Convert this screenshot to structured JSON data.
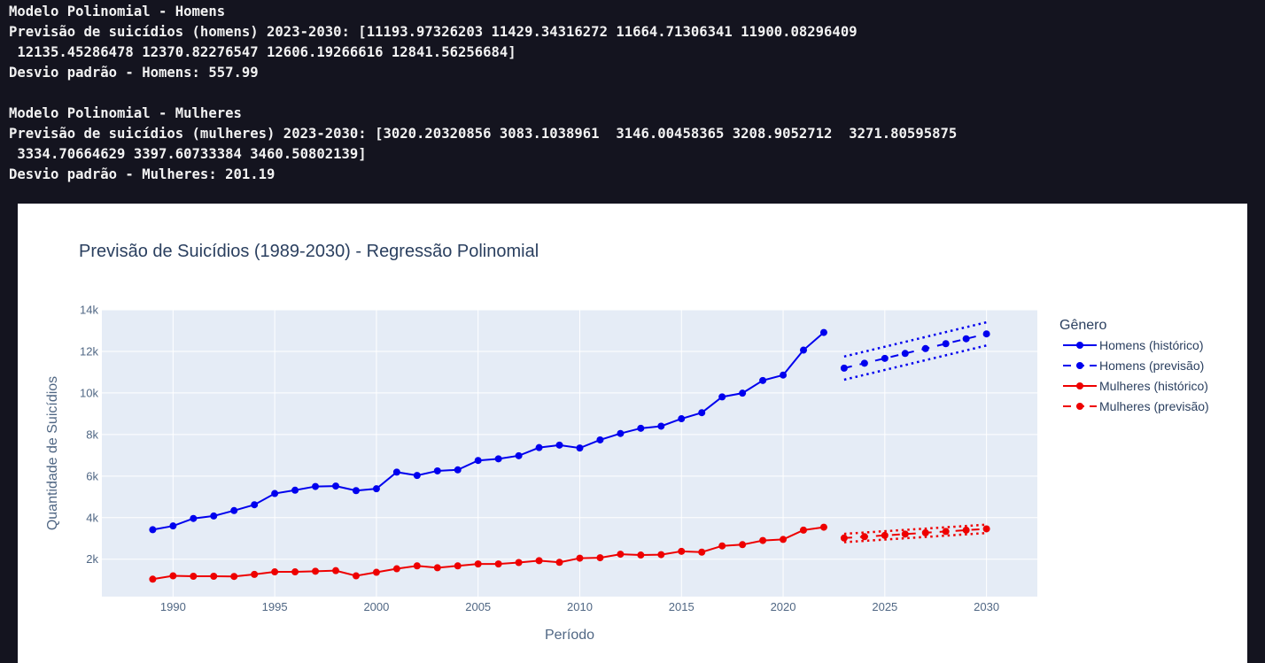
{
  "console": {
    "lines": [
      "Modelo Polinomial - Homens",
      "Previsão de suicídios (homens) 2023-2030: [11193.97326203 11429.34316272 11664.71306341 11900.08296409",
      " 12135.45286478 12370.82276547 12606.19266616 12841.56256684]",
      "Desvio padrão - Homens: 557.99",
      "",
      "Modelo Polinomial - Mulheres",
      "Previsão de suicídios (mulheres) 2023-2030: [3020.20320856 3083.1038961  3146.00458365 3208.9052712  3271.80595875",
      " 3334.70664629 3397.60733384 3460.50802139]",
      "Desvio padrão - Mulheres: 201.19"
    ]
  },
  "chart_data": {
    "type": "line",
    "title": "Previsão de Suicídios (1989-2030) - Regressão Polinomial",
    "xlabel": "Período",
    "ylabel": "Quantidade de Suicídios",
    "xlim": [
      1986.5,
      2032.5
    ],
    "ylim": [
      200,
      14000
    ],
    "x_ticks": [
      1990,
      1995,
      2000,
      2005,
      2010,
      2015,
      2020,
      2025,
      2030
    ],
    "y_ticks": [
      2000,
      4000,
      6000,
      8000,
      10000,
      12000,
      14000
    ],
    "y_tick_labels": [
      "2k",
      "4k",
      "6k",
      "8k",
      "10k",
      "12k",
      "14k"
    ],
    "grid": true,
    "legend_title": "Gênero",
    "legend_position": "right",
    "colors": {
      "homens": "#0000ee",
      "mulheres": "#ee0000",
      "plot_bg": "#e5ecf6",
      "grid": "#ffffff",
      "text": "#2a3f5f",
      "tick_text": "#506784"
    },
    "series": [
      {
        "name": "Homens (histórico)",
        "color": "#0000ee",
        "dash": "solid",
        "x": [
          1989,
          1990,
          1991,
          1992,
          1993,
          1994,
          1995,
          1996,
          1997,
          1998,
          1999,
          2000,
          2001,
          2002,
          2003,
          2004,
          2005,
          2006,
          2007,
          2008,
          2009,
          2010,
          2011,
          2012,
          2013,
          2014,
          2015,
          2016,
          2017,
          2018,
          2019,
          2020,
          2021,
          2022
        ],
        "y": [
          3420,
          3600,
          3960,
          4080,
          4340,
          4620,
          5160,
          5320,
          5500,
          5520,
          5300,
          5390,
          6190,
          6030,
          6250,
          6300,
          6750,
          6830,
          6980,
          7370,
          7490,
          7350,
          7740,
          8050,
          8300,
          8400,
          8760,
          9050,
          9810,
          9990,
          10600,
          10860,
          12060,
          12910
        ]
      },
      {
        "name": "Homens (previsão)",
        "color": "#0000ee",
        "dash": "dash",
        "x": [
          2023,
          2024,
          2025,
          2026,
          2027,
          2028,
          2029,
          2030
        ],
        "y": [
          11193.97,
          11429.34,
          11664.71,
          11900.08,
          12135.45,
          12370.82,
          12606.19,
          12841.56
        ],
        "std": 557.99
      },
      {
        "name": "Mulheres (histórico)",
        "color": "#ee0000",
        "dash": "solid",
        "x": [
          1989,
          1990,
          1991,
          1992,
          1993,
          1994,
          1995,
          1996,
          1997,
          1998,
          1999,
          2000,
          2001,
          2002,
          2003,
          2004,
          2005,
          2006,
          2007,
          2008,
          2009,
          2010,
          2011,
          2012,
          2013,
          2014,
          2015,
          2016,
          2017,
          2018,
          2019,
          2020,
          2021,
          2022
        ],
        "y": [
          1040,
          1200,
          1180,
          1180,
          1170,
          1270,
          1390,
          1390,
          1420,
          1450,
          1200,
          1370,
          1540,
          1680,
          1590,
          1680,
          1770,
          1770,
          1840,
          1930,
          1850,
          2050,
          2070,
          2240,
          2200,
          2220,
          2380,
          2340,
          2640,
          2700,
          2900,
          2950,
          3400,
          3540
        ]
      },
      {
        "name": "Mulheres (previsão)",
        "color": "#ee0000",
        "dash": "dash",
        "x": [
          2023,
          2024,
          2025,
          2026,
          2027,
          2028,
          2029,
          2030
        ],
        "y": [
          3020.2,
          3083.1,
          3146.0,
          3208.91,
          3271.81,
          3334.71,
          3397.61,
          3460.51
        ],
        "std": 201.19
      }
    ]
  }
}
